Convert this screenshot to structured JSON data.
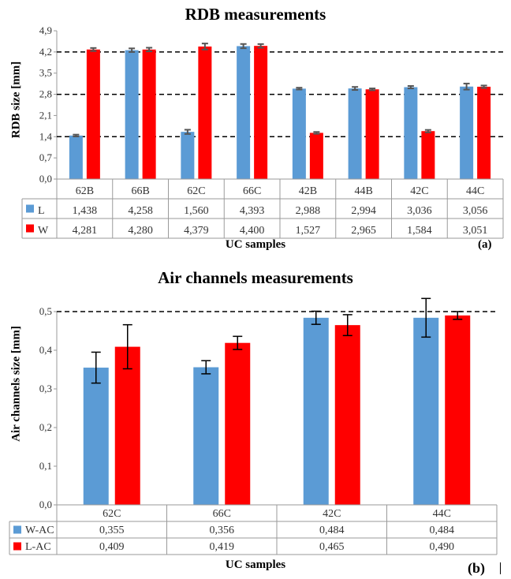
{
  "chart_data": [
    {
      "type": "bar",
      "title": "RDB measurements",
      "ylabel": "RDB size [mm]",
      "xlabel": "UC samples",
      "panel_tag": "(a)",
      "categories": [
        "62B",
        "66B",
        "62C",
        "66C",
        "42B",
        "44B",
        "42C",
        "44C"
      ],
      "ylim": [
        0,
        4.9
      ],
      "yticks": [
        "0,0",
        "0,7",
        "1,4",
        "2,1",
        "2,8",
        "3,5",
        "4,2",
        "4,9"
      ],
      "reference_lines": [
        1.4,
        2.8,
        4.2
      ],
      "grid": false,
      "legend": "table-below",
      "series": [
        {
          "name": "L",
          "color": "#5b9bd5",
          "values": [
            1.438,
            4.258,
            1.56,
            4.393,
            2.988,
            2.994,
            3.036,
            3.056
          ],
          "labels": [
            "1,438",
            "4,258",
            "1,560",
            "4,393",
            "2,988",
            "2,994",
            "3,036",
            "3,056"
          ],
          "errors": [
            0.03,
            0.06,
            0.07,
            0.07,
            0.03,
            0.05,
            0.04,
            0.1
          ]
        },
        {
          "name": "W",
          "color": "#ff0000",
          "values": [
            4.281,
            4.28,
            4.379,
            4.4,
            1.527,
            2.965,
            1.584,
            3.051
          ],
          "labels": [
            "4,281",
            "4,280",
            "4,379",
            "4,400",
            "1,527",
            "2,965",
            "1,584",
            "3,051"
          ],
          "errors": [
            0.05,
            0.06,
            0.1,
            0.06,
            0.03,
            0.03,
            0.04,
            0.04
          ]
        }
      ]
    },
    {
      "type": "bar",
      "title": "Air channels measurements",
      "ylabel": "Air channels size [mm]",
      "xlabel": "UC samples",
      "panel_tag": "(b)",
      "categories": [
        "62C",
        "66C",
        "42C",
        "44C"
      ],
      "ylim": [
        0,
        0.5
      ],
      "yticks": [
        "0,0",
        "0,1",
        "0,2",
        "0,3",
        "0,4",
        "0,5"
      ],
      "reference_lines": [
        0.5
      ],
      "grid": false,
      "legend": "table-below",
      "series": [
        {
          "name": "W-AC",
          "color": "#5b9bd5",
          "values": [
            0.355,
            0.356,
            0.484,
            0.484
          ],
          "labels": [
            "0,355",
            "0,356",
            "0,484",
            "0,484"
          ],
          "errors": [
            0.04,
            0.017,
            0.017,
            0.05
          ]
        },
        {
          "name": "L-AC",
          "color": "#ff0000",
          "values": [
            0.409,
            0.419,
            0.465,
            0.49
          ],
          "labels": [
            "0,409",
            "0,419",
            "0,465",
            "0,490"
          ],
          "errors": [
            0.057,
            0.017,
            0.027,
            0.01
          ]
        }
      ]
    }
  ]
}
